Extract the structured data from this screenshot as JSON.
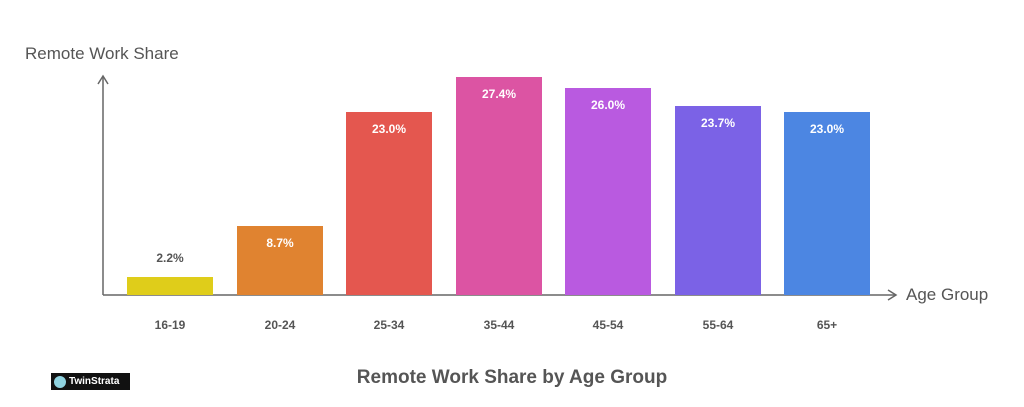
{
  "chart_data": {
    "type": "bar",
    "title": "Remote Work Share by Age Group",
    "xlabel": "Age Group",
    "ylabel": "Remote Work Share",
    "categories": [
      "16-19",
      "20-24",
      "25-34",
      "35-44",
      "45-54",
      "55-64",
      "65+"
    ],
    "values": [
      2.2,
      8.7,
      23.0,
      27.4,
      26.0,
      23.7,
      23.0
    ],
    "value_labels": [
      "2.2%",
      "8.7%",
      "23.0%",
      "27.4%",
      "26.0%",
      "23.7%",
      "23.0%"
    ],
    "colors": [
      "#dfcd1a",
      "#e08330",
      "#e4574f",
      "#dc54a3",
      "#b95ae0",
      "#7b62e6",
      "#4c86e2"
    ],
    "ylim": [
      0,
      27.4
    ],
    "grid": false,
    "legend": null
  },
  "branding": {
    "logo_text": "TwinStrata"
  }
}
